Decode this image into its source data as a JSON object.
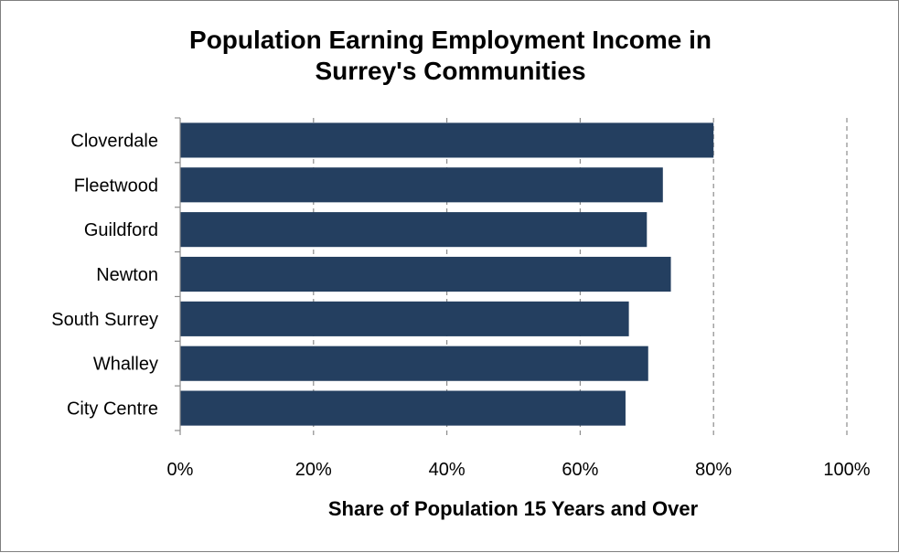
{
  "chart_data": {
    "type": "bar",
    "orientation": "horizontal",
    "title": "Population Earning Employment Income in Surrey's Communities",
    "title_lines": [
      "Population Earning Employment Income in",
      "Surrey's Communities"
    ],
    "categories": [
      "Cloverdale",
      "Fleetwood",
      "Guildford",
      "Newton",
      "South Surrey",
      "Whalley",
      "City Centre"
    ],
    "values": [
      0.8,
      0.724,
      0.7,
      0.736,
      0.673,
      0.702,
      0.668
    ],
    "xlabel": "Share of Population 15 Years and Over",
    "ylabel": "",
    "xlim": [
      0,
      1
    ],
    "x_ticks": [
      0,
      0.2,
      0.4,
      0.6,
      0.8,
      1.0
    ],
    "x_tick_labels": [
      "0%",
      "20%",
      "40%",
      "60%",
      "80%",
      "100%"
    ],
    "grid": "vertical dashed",
    "legend": "none",
    "bar_color": "#243F60"
  }
}
